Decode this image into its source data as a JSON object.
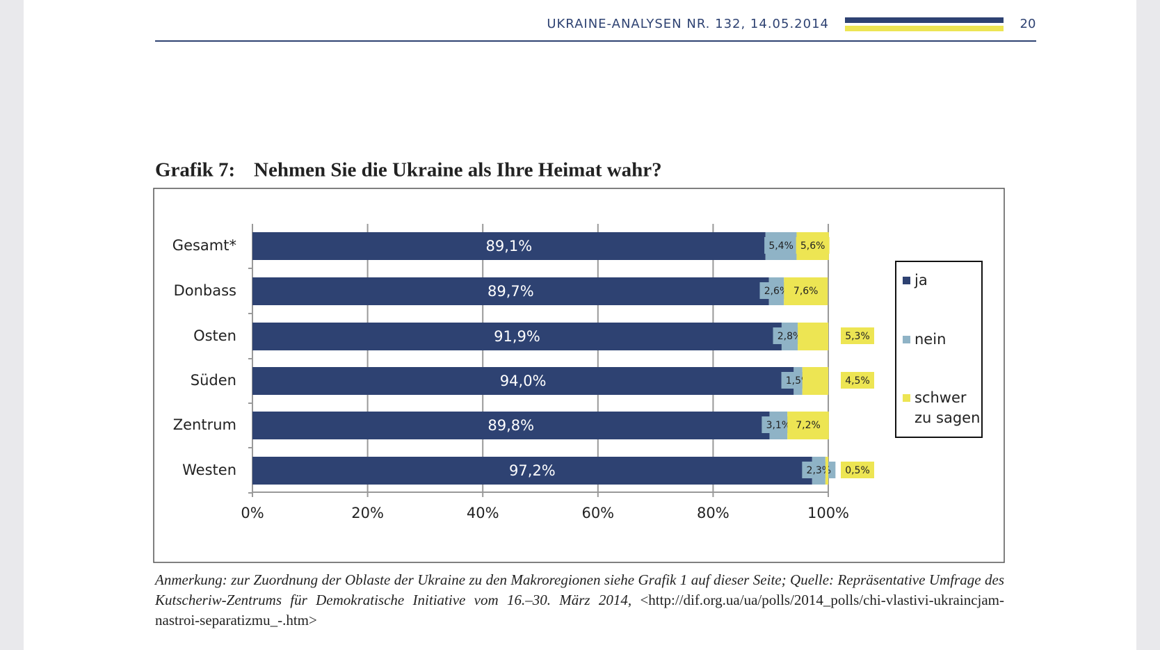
{
  "header": {
    "journal": "UKRAINE-ANALYSEN NR. 132, 14.05.2014",
    "page": "20"
  },
  "figure_label": "Grafik 7:",
  "chart_data": {
    "type": "stacked-bar-horizontal",
    "title": "Nehmen Sie die Ukraine als Ihre Heimat wahr?",
    "categories": [
      "Gesamt*",
      "Donbass",
      "Osten",
      "Süden",
      "Zentrum",
      "Westen"
    ],
    "series": [
      {
        "name": "ja",
        "color": "#2e4272",
        "values": [
          89.1,
          89.7,
          91.9,
          94.0,
          89.8,
          97.2
        ],
        "value_labels": [
          "89,1%",
          "89,7%",
          "91,9%",
          "94,0%",
          "89,8%",
          "97,2%"
        ]
      },
      {
        "name": "nein",
        "color": "#8fb3c6",
        "values": [
          5.4,
          2.6,
          2.8,
          1.5,
          3.1,
          2.3
        ],
        "value_labels": [
          "5,4%",
          "2,6%",
          "2,8%",
          "1,5%",
          "3,1%",
          "2,3%"
        ]
      },
      {
        "name": "schwer zu sagen",
        "color": "#ede553",
        "values": [
          5.6,
          7.6,
          5.3,
          4.5,
          7.2,
          0.5
        ],
        "value_labels": [
          "5,6%",
          "7,6%",
          "5,3%",
          "4,5%",
          "7,2%",
          "0,5%"
        ]
      }
    ],
    "xlim": [
      0,
      100
    ],
    "xticks": [
      {
        "value": 0,
        "label": "0%"
      },
      {
        "value": 20,
        "label": "20%"
      },
      {
        "value": 40,
        "label": "40%"
      },
      {
        "value": 60,
        "label": "60%"
      },
      {
        "value": 80,
        "label": "80%"
      },
      {
        "value": 100,
        "label": "100%"
      }
    ],
    "grid": true,
    "legend": "right"
  },
  "note": {
    "text": "Anmerkung: zur Zuordnung der Oblaste der Ukraine zu den Makroregionen siehe Grafik 1 auf dieser Seite; Quelle: Repräsentative Umfrage des Kutscheriw-Zentrums für Demokratische Initiative vom 16.–30. März 2014,",
    "url": "<http://dif.org.ua/ua/polls/2014_polls/chi-vlastivi-ukraincjam-nastroi-separatizmu_-.htm>"
  }
}
